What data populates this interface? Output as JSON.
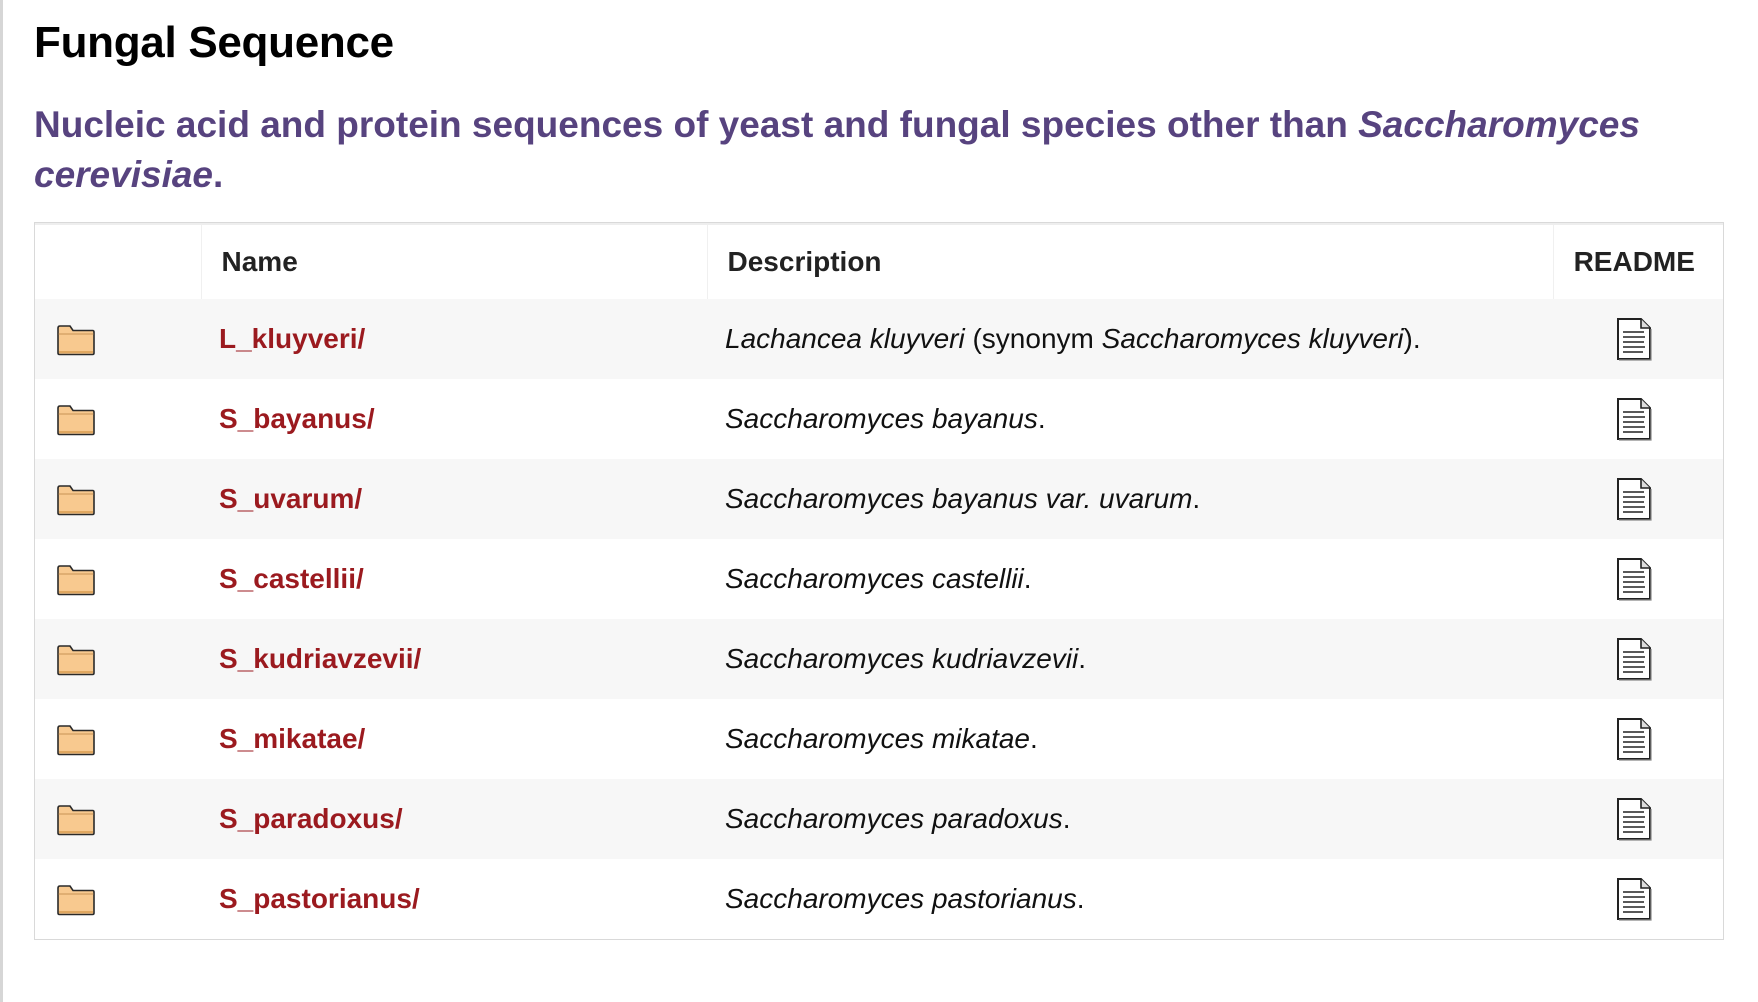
{
  "page": {
    "title": "Fungal Sequence",
    "subtitle_pre": "Nucleic acid and protein sequences of yeast and fungal species other than ",
    "subtitle_em": "Saccharomyces cerevisiae",
    "subtitle_post": "."
  },
  "table": {
    "headers": {
      "icon": "",
      "name": "Name",
      "description": "Description",
      "readme": "README"
    },
    "rows": [
      {
        "name": "L_kluyveri/",
        "desc_em1": "Lachancea kluyveri",
        "desc_mid": " (synonym ",
        "desc_em2": "Saccharomyces kluyveri",
        "desc_post": ")."
      },
      {
        "name": "S_bayanus/",
        "desc_em1": "Saccharomyces bayanus",
        "desc_post": "."
      },
      {
        "name": "S_uvarum/",
        "desc_em1": "Saccharomyces bayanus var. uvarum",
        "desc_post": "."
      },
      {
        "name": "S_castellii/",
        "desc_em1": "Saccharomyces castellii",
        "desc_post": "."
      },
      {
        "name": "S_kudriavzevii/",
        "desc_em1": "Saccharomyces kudriavzevii",
        "desc_post": "."
      },
      {
        "name": "S_mikatae/",
        "desc_em1": "Saccharomyces mikatae",
        "desc_post": "."
      },
      {
        "name": "S_paradoxus/",
        "desc_em1": "Saccharomyces paradoxus",
        "desc_post": "."
      },
      {
        "name": "S_pastorianus/",
        "desc_em1": "Saccharomyces pastorianus",
        "desc_post": "."
      }
    ]
  },
  "icons": {
    "folder": "folder-icon",
    "readme": "document-icon"
  },
  "colors": {
    "subtitle": "#57437f",
    "link": "#9b1a1f",
    "folder_fill": "#f8c98f",
    "row_stripe": "#f7f7f7"
  }
}
